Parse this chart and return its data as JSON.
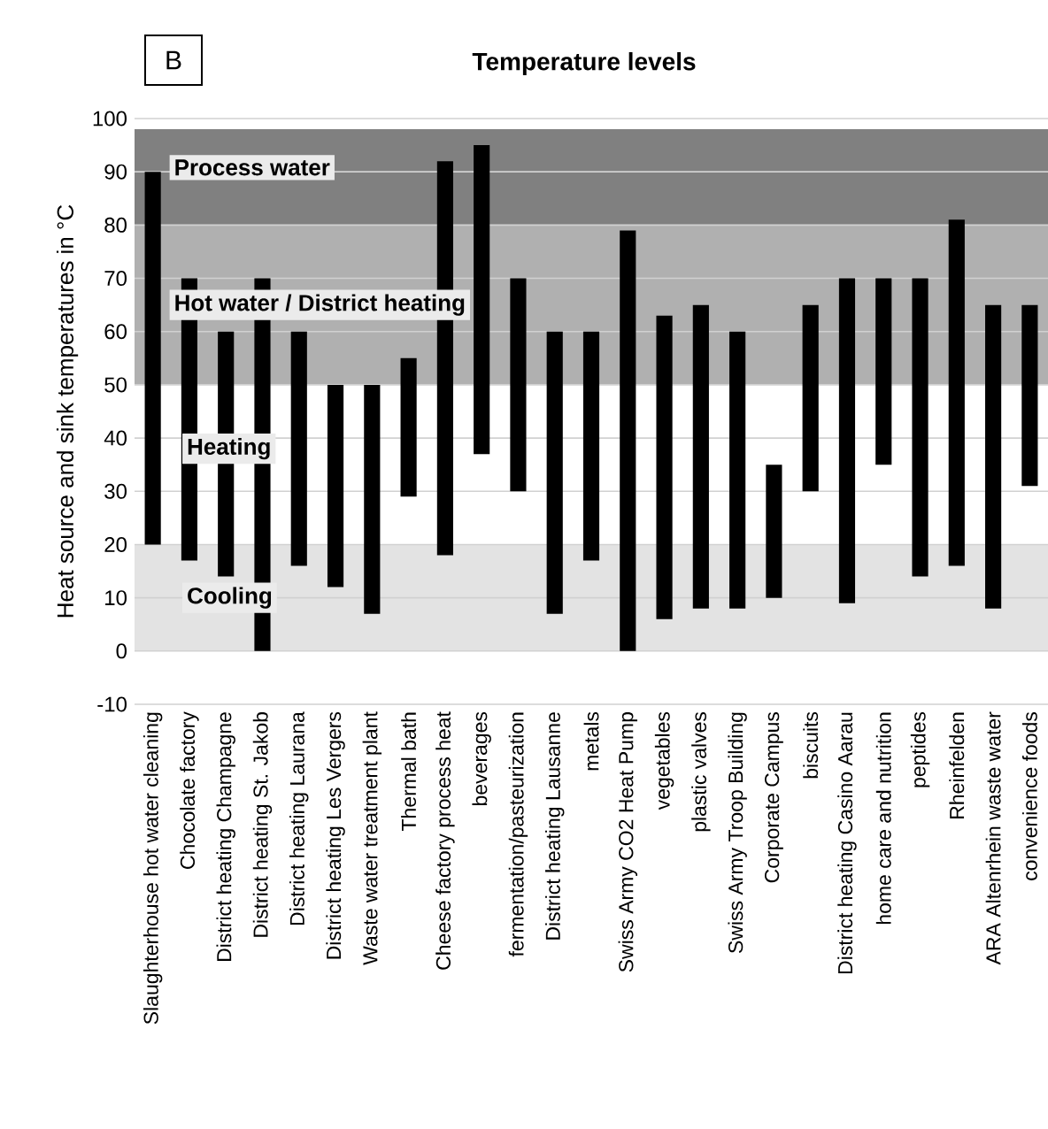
{
  "chart_data": {
    "type": "bar",
    "title": "Temperature levels",
    "ylabel": "Heat source and sink temperatures in °C",
    "annotations": [
      "B",
      {
        "text": "Heating",
        "y": 38
      }
    ],
    "categories": [
      "Slaughterhouse hot water cleaning",
      "Chocolate factory",
      "District heating Champagne",
      "District heating St. Jakob",
      "District heating Laurana",
      "District heating Les Vergers",
      "Waste water treatment plant",
      "Thermal bath",
      "Cheese factory process heat",
      "beverages",
      "fermentation/pasteurization",
      "District heating Lausanne",
      "metals",
      "Swiss Army CO2 Heat Pump",
      "vegetables",
      "plastic valves",
      "Swiss Army Troop Building",
      "Corporate Campus",
      "biscuits",
      "District heating Casino Aarau",
      "home care and nutrition",
      "peptides",
      "Rheinfelden",
      "ARA Altenrhein waste water",
      "convenience foods"
    ],
    "base": [
      20,
      17,
      14,
      0,
      16,
      12,
      7,
      29,
      18,
      37,
      30,
      7,
      17,
      0,
      6,
      8,
      8,
      10,
      30,
      9,
      35,
      14,
      16,
      8,
      31
    ],
    "values": [
      70,
      53,
      46,
      70,
      44,
      38,
      43,
      26,
      74,
      58,
      40,
      53,
      43,
      79,
      57,
      57,
      52,
      25,
      35,
      61,
      35,
      56,
      65,
      57,
      34
    ],
    "color": "#000000",
    "ylim": [
      -10,
      100
    ],
    "yticks": [
      -10,
      0,
      10,
      20,
      30,
      40,
      50,
      60,
      70,
      80,
      90,
      100
    ],
    "grid": "y",
    "bands": [
      {
        "axis": "y",
        "from": 80,
        "to": 98,
        "label": "Process water",
        "color": "#808080"
      },
      {
        "axis": "y",
        "from": 50,
        "to": 80,
        "label": "Hot water / District heating",
        "color": "#b0b0b0"
      },
      {
        "axis": "y",
        "from": 0,
        "to": 20,
        "label": "Cooling",
        "color": "#e3e3e3"
      }
    ]
  }
}
